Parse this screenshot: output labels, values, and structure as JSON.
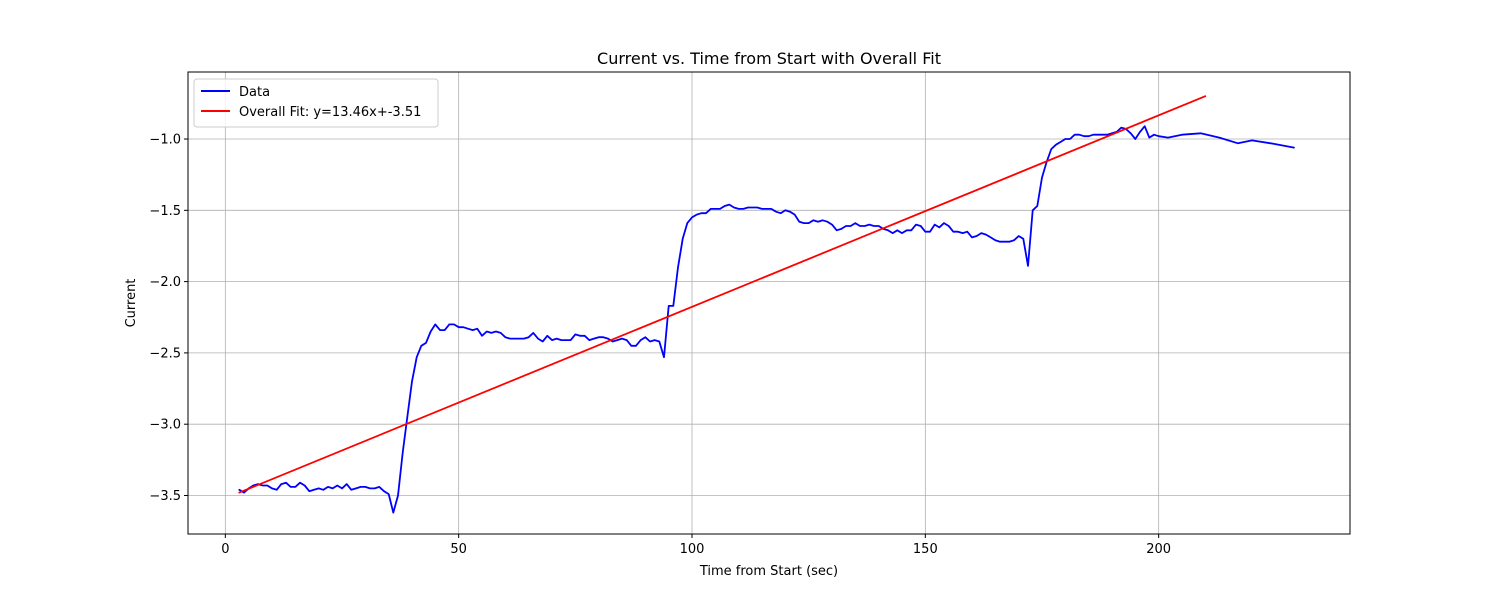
{
  "chart_data": {
    "type": "line",
    "title": "Current vs. Time from Start with Overall Fit",
    "xlabel": "Time from Start (sec)",
    "ylabel": "Current",
    "xlim": [
      -8,
      241
    ],
    "ylim": [
      -3.77,
      -0.53
    ],
    "xticks": [
      0,
      50,
      100,
      150,
      200
    ],
    "xtick_labels": [
      "0",
      "50",
      "100",
      "150",
      "200"
    ],
    "yticks": [
      -3.5,
      -3.0,
      -2.5,
      -2.0,
      -1.5,
      -1.0
    ],
    "ytick_labels": [
      "−3.5",
      "−3.0",
      "−2.5",
      "−2.0",
      "−1.5",
      "−1.0"
    ],
    "grid": true,
    "legend_position": "top-left",
    "series": [
      {
        "name": "Data",
        "color": "#0000ff",
        "x": [
          3,
          4,
          5,
          6,
          7,
          8,
          9,
          10,
          11,
          12,
          13,
          14,
          15,
          16,
          17,
          18,
          19,
          20,
          21,
          22,
          23,
          24,
          25,
          26,
          27,
          28,
          29,
          30,
          31,
          32,
          33,
          34,
          35,
          36,
          37,
          38,
          39,
          40,
          41,
          42,
          43,
          44,
          45,
          46,
          47,
          48,
          49,
          50,
          51,
          52,
          53,
          54,
          55,
          56,
          57,
          58,
          59,
          60,
          61,
          62,
          63,
          64,
          65,
          66,
          67,
          68,
          69,
          70,
          71,
          72,
          73,
          74,
          75,
          76,
          77,
          78,
          79,
          80,
          81,
          82,
          83,
          84,
          85,
          86,
          87,
          88,
          89,
          90,
          91,
          92,
          93,
          94,
          95,
          96,
          97,
          98,
          99,
          100,
          101,
          102,
          103,
          104,
          105,
          106,
          107,
          108,
          109,
          110,
          111,
          112,
          113,
          114,
          115,
          116,
          117,
          118,
          119,
          120,
          121,
          122,
          123,
          124,
          125,
          126,
          127,
          128,
          129,
          130,
          131,
          132,
          133,
          134,
          135,
          136,
          137,
          138,
          139,
          140,
          141,
          142,
          143,
          144,
          145,
          146,
          147,
          148,
          149,
          150,
          151,
          152,
          153,
          154,
          155,
          156,
          157,
          158,
          159,
          160,
          161,
          162,
          163,
          164,
          165,
          166,
          167,
          168,
          169,
          170,
          171,
          172,
          173,
          174,
          175,
          176,
          177,
          178,
          179,
          180,
          181,
          182,
          183,
          184,
          185,
          186,
          187,
          188,
          189,
          190,
          191,
          192,
          193,
          194,
          195,
          196,
          197,
          198,
          199,
          200,
          202,
          205,
          209,
          213,
          217,
          220,
          224,
          229
        ],
        "y": [
          -3.46,
          -3.48,
          -3.45,
          -3.43,
          -3.42,
          -3.43,
          -3.43,
          -3.45,
          -3.46,
          -3.42,
          -3.41,
          -3.44,
          -3.44,
          -3.41,
          -3.43,
          -3.47,
          -3.46,
          -3.45,
          -3.46,
          -3.44,
          -3.45,
          -3.43,
          -3.45,
          -3.42,
          -3.46,
          -3.45,
          -3.44,
          -3.44,
          -3.45,
          -3.45,
          -3.44,
          -3.47,
          -3.49,
          -3.62,
          -3.5,
          -3.2,
          -2.95,
          -2.7,
          -2.53,
          -2.45,
          -2.43,
          -2.35,
          -2.3,
          -2.34,
          -2.34,
          -2.3,
          -2.3,
          -2.32,
          -2.32,
          -2.33,
          -2.34,
          -2.33,
          -2.38,
          -2.35,
          -2.36,
          -2.35,
          -2.36,
          -2.39,
          -2.4,
          -2.4,
          -2.4,
          -2.4,
          -2.39,
          -2.36,
          -2.4,
          -2.42,
          -2.38,
          -2.41,
          -2.4,
          -2.41,
          -2.41,
          -2.41,
          -2.37,
          -2.38,
          -2.38,
          -2.41,
          -2.4,
          -2.39,
          -2.39,
          -2.4,
          -2.42,
          -2.41,
          -2.4,
          -2.41,
          -2.45,
          -2.45,
          -2.41,
          -2.39,
          -2.42,
          -2.41,
          -2.42,
          -2.53,
          -2.17,
          -2.17,
          -1.9,
          -1.7,
          -1.59,
          -1.55,
          -1.53,
          -1.52,
          -1.52,
          -1.49,
          -1.49,
          -1.49,
          -1.47,
          -1.46,
          -1.48,
          -1.49,
          -1.49,
          -1.48,
          -1.48,
          -1.48,
          -1.49,
          -1.49,
          -1.49,
          -1.51,
          -1.52,
          -1.5,
          -1.51,
          -1.53,
          -1.58,
          -1.59,
          -1.59,
          -1.57,
          -1.58,
          -1.57,
          -1.58,
          -1.6,
          -1.64,
          -1.63,
          -1.61,
          -1.61,
          -1.59,
          -1.61,
          -1.61,
          -1.6,
          -1.61,
          -1.61,
          -1.63,
          -1.64,
          -1.66,
          -1.64,
          -1.66,
          -1.64,
          -1.64,
          -1.6,
          -1.61,
          -1.65,
          -1.65,
          -1.6,
          -1.62,
          -1.59,
          -1.61,
          -1.65,
          -1.65,
          -1.66,
          -1.65,
          -1.69,
          -1.68,
          -1.66,
          -1.67,
          -1.69,
          -1.71,
          -1.72,
          -1.72,
          -1.72,
          -1.71,
          -1.68,
          -1.7,
          -1.89,
          -1.5,
          -1.47,
          -1.27,
          -1.16,
          -1.07,
          -1.04,
          -1.02,
          -1.0,
          -1.0,
          -0.97,
          -0.97,
          -0.98,
          -0.98,
          -0.97,
          -0.97,
          -0.97,
          -0.97,
          -0.96,
          -0.95,
          -0.92,
          -0.93,
          -0.96,
          -1.0,
          -0.95,
          -0.91,
          -0.99,
          -0.97,
          -0.98,
          -0.99,
          -0.97,
          -0.96,
          -0.99,
          -1.03,
          -1.01,
          -1.03,
          -1.06
        ]
      },
      {
        "name": "Overall Fit: y=13.46x+-3.51",
        "color": "#ff0000",
        "x": [
          3,
          210
        ],
        "y": [
          -3.48,
          -0.7
        ]
      }
    ]
  }
}
